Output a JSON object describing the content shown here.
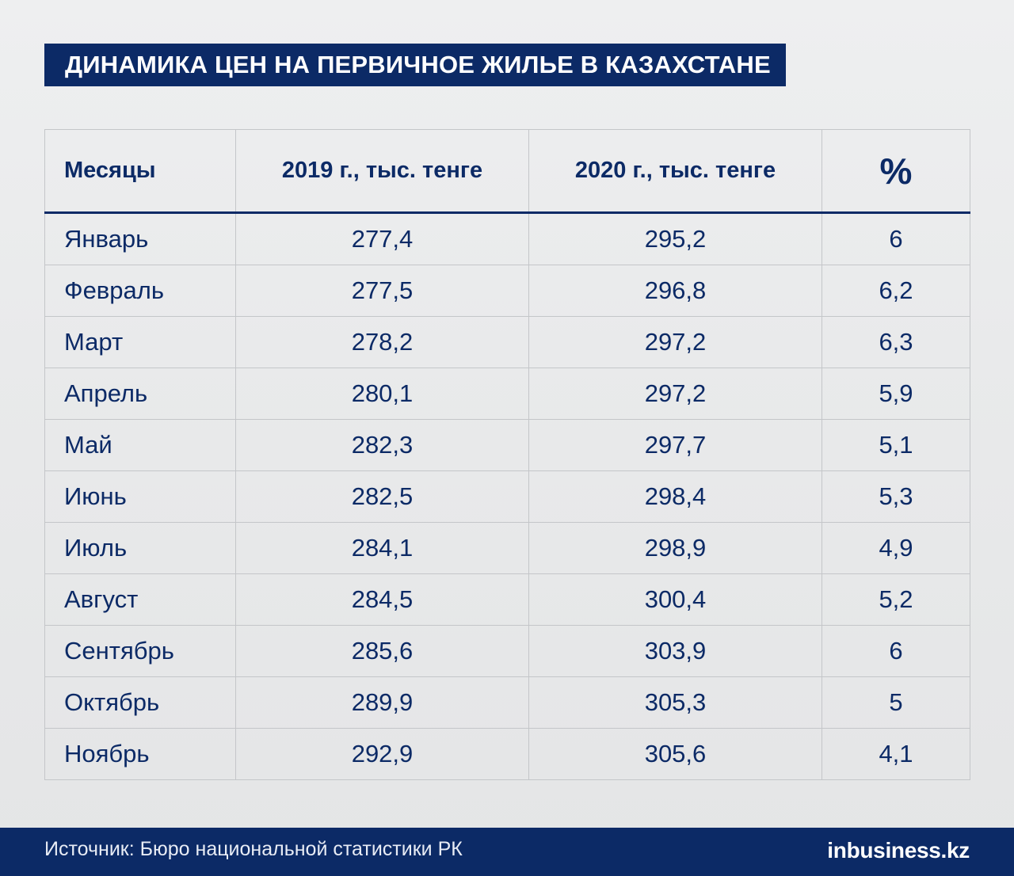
{
  "title": "ДИНАМИКА ЦЕН НА ПЕРВИЧНОЕ ЖИЛЬЕ В КАЗАХСТАНЕ",
  "footer": {
    "source": "Источник: Бюро национальной статистики РК",
    "logo_in": "in",
    "logo_rest": "business.kz"
  },
  "colors": {
    "brand": "#0c2a66",
    "background": "#eaebec",
    "grid": "#c4c6c9"
  },
  "chart_data": {
    "type": "table",
    "title": "ДИНАМИКА ЦЕН НА ПЕРВИЧНОЕ ЖИЛЬЕ В КАЗАХСТАНЕ",
    "columns": [
      "Месяцы",
      "2019 г., тыс. тенге",
      "2020 г., тыс. тенге",
      "%"
    ],
    "rows": [
      [
        "Январь",
        "277,4",
        "295,2",
        "6"
      ],
      [
        "Февраль",
        "277,5",
        "296,8",
        "6,2"
      ],
      [
        "Март",
        "278,2",
        "297,2",
        "6,3"
      ],
      [
        "Апрель",
        "280,1",
        "297,2",
        "5,9"
      ],
      [
        "Май",
        "282,3",
        "297,7",
        "5,1"
      ],
      [
        "Июнь",
        "282,5",
        "298,4",
        "5,3"
      ],
      [
        "Июль",
        "284,1",
        "298,9",
        "4,9"
      ],
      [
        "Август",
        "284,5",
        "300,4",
        "5,2"
      ],
      [
        "Сентябрь",
        "285,6",
        "303,9",
        "6"
      ],
      [
        "Октябрь",
        "289,9",
        "305,3",
        "5"
      ],
      [
        "Ноябрь",
        "292,9",
        "305,6",
        "4,1"
      ]
    ]
  }
}
